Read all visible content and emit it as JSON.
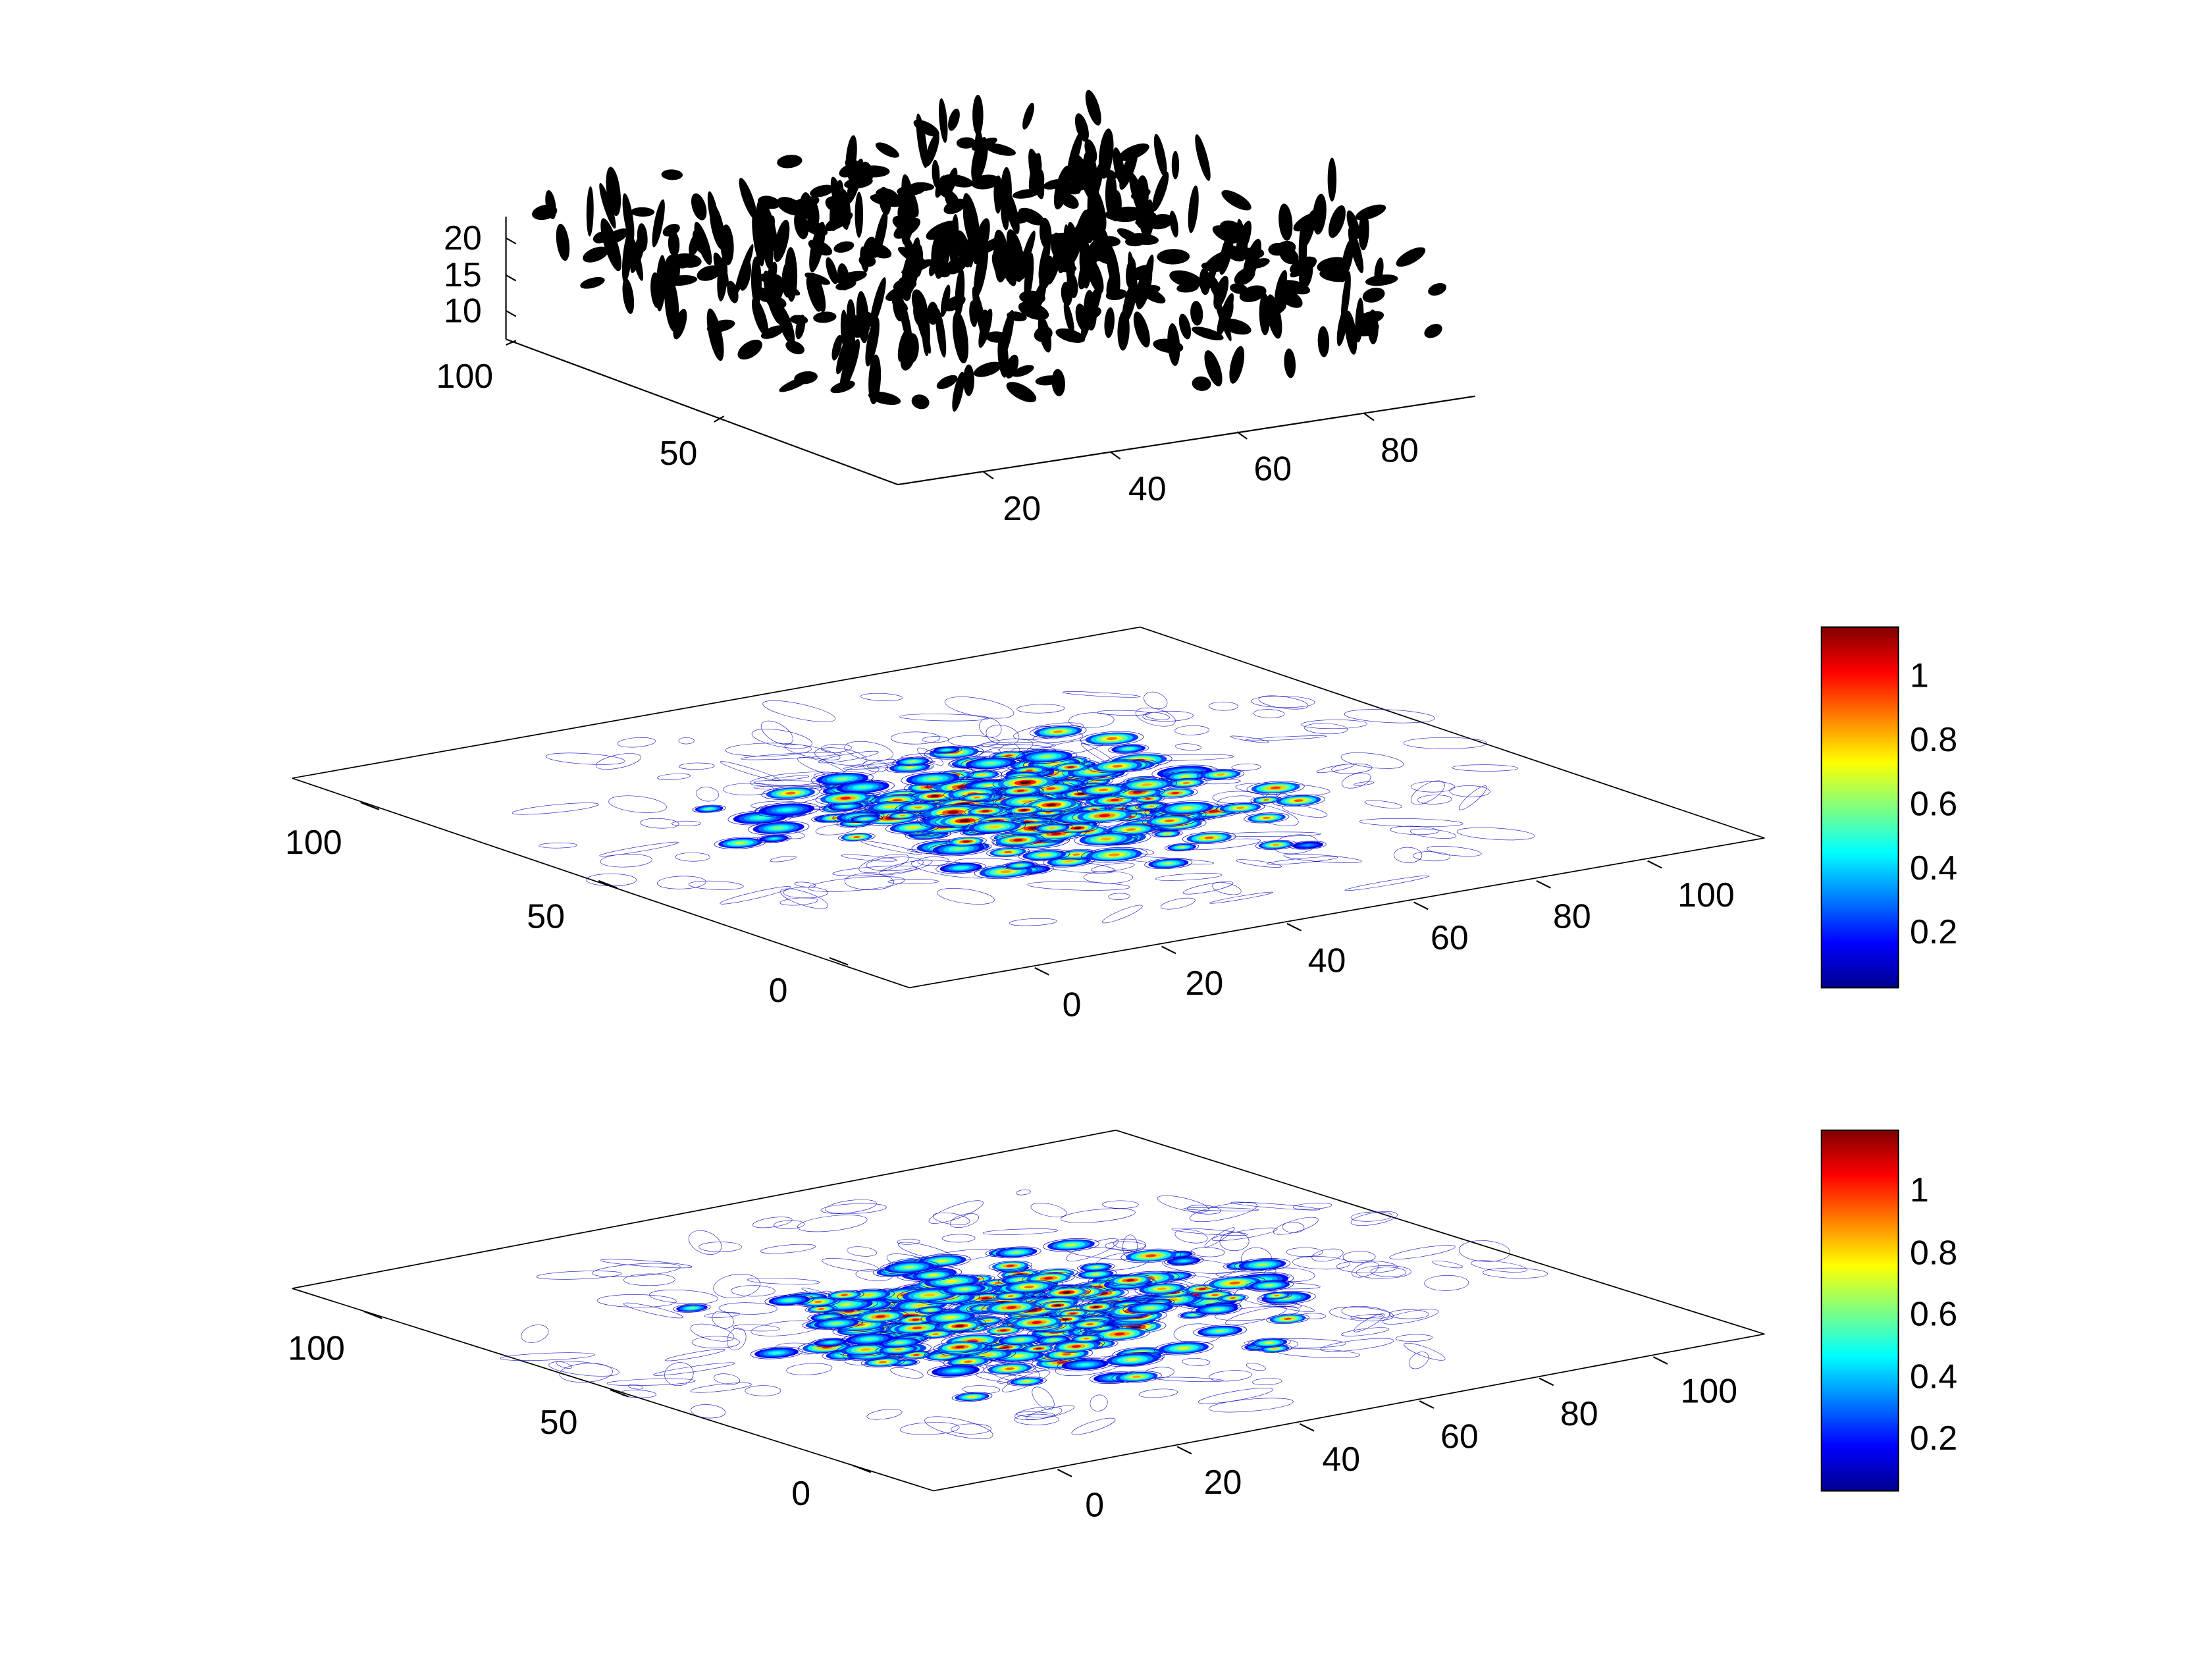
{
  "chart_data": [
    {
      "type": "scatter",
      "subtype": "3d-ellipsoids",
      "color": "#000000",
      "x_ticks": [
        "20",
        "40",
        "60",
        "80"
      ],
      "y_ticks": [
        "50",
        "100"
      ],
      "z_ticks": [
        "10",
        "15",
        "20"
      ]
    },
    {
      "type": "heatmap",
      "subtype": "3d-contour",
      "colormap": "jet",
      "x_ticks": [
        "0",
        "20",
        "40",
        "60",
        "80",
        "100"
      ],
      "y_ticks": [
        "0",
        "50",
        "100"
      ],
      "colorbar": {
        "ticks": [
          "0.2",
          "0.4",
          "0.6",
          "0.8",
          "1"
        ],
        "range": [
          0.01,
          1.14
        ]
      }
    },
    {
      "type": "heatmap",
      "subtype": "3d-contour",
      "colormap": "jet",
      "x_ticks": [
        "0",
        "20",
        "40",
        "60",
        "80",
        "100"
      ],
      "y_ticks": [
        "0",
        "50",
        "100"
      ],
      "colorbar": {
        "ticks": [
          "0.2",
          "0.4",
          "0.6",
          "0.8",
          "1"
        ],
        "range": [
          0.01,
          1.18
        ]
      }
    }
  ]
}
